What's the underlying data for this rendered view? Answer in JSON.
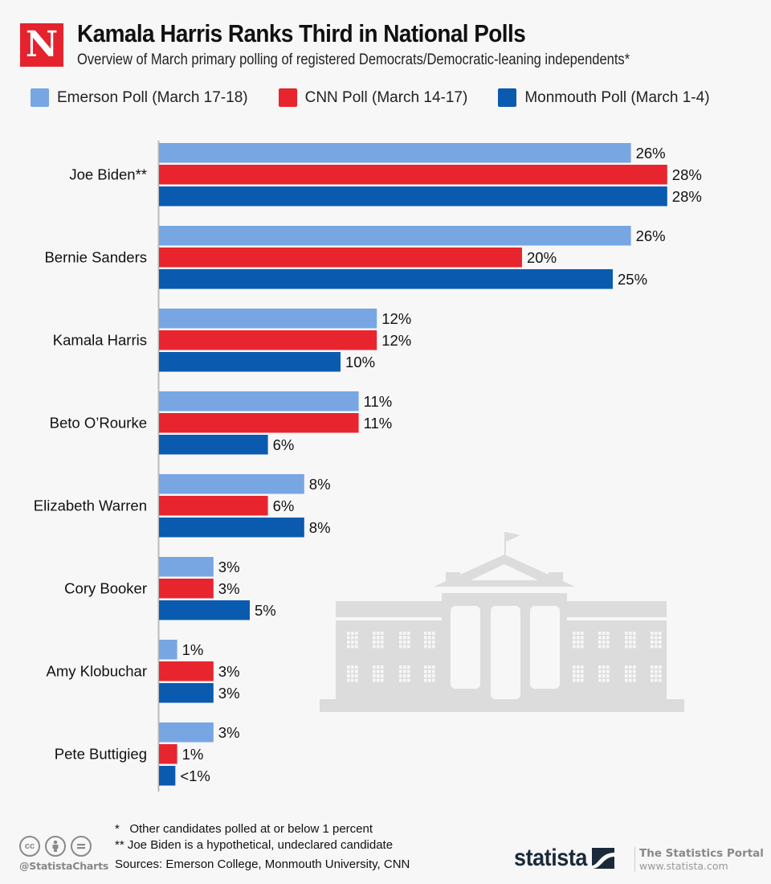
{
  "header": {
    "logo_letter": "N",
    "title": "Kamala Harris Ranks Third in National Polls",
    "subtitle": "Overview of March primary polling of registered Democrats/Democratic-leaning independents*"
  },
  "colors": {
    "emerson": "#77a6e3",
    "cnn": "#e8252f",
    "monmouth": "#0a5bb0",
    "axis": "#bbbbbb",
    "illustration": "#dcdcdc"
  },
  "chart_data": {
    "type": "bar",
    "orientation": "horizontal",
    "title": "Kamala Harris Ranks Third in National Polls",
    "subtitle": "Overview of March primary polling of registered Democrats/Democratic-leaning independents*",
    "xlabel": "",
    "ylabel": "",
    "unit": "%",
    "xlim": [
      0,
      28
    ],
    "grid": false,
    "legend_position": "top",
    "categories": [
      "Joe Biden**",
      "Bernie Sanders",
      "Kamala Harris",
      "Beto O’Rourke",
      "Elizabeth Warren",
      "Cory Booker",
      "Amy Klobuchar",
      "Pete Buttigieg"
    ],
    "series": [
      {
        "name": "Emerson Poll (March 17-18)",
        "key": "emerson",
        "values": [
          26,
          26,
          12,
          11,
          8,
          3,
          1,
          3
        ],
        "labels": [
          "26%",
          "26%",
          "12%",
          "11%",
          "8%",
          "3%",
          "1%",
          "3%"
        ]
      },
      {
        "name": "CNN Poll (March 14-17)",
        "key": "cnn",
        "values": [
          28,
          20,
          12,
          11,
          6,
          3,
          3,
          1
        ],
        "labels": [
          "28%",
          "20%",
          "12%",
          "11%",
          "6%",
          "3%",
          "3%",
          "1%"
        ]
      },
      {
        "name": "Monmouth Poll (March 1-4)",
        "key": "monmouth",
        "values": [
          28,
          25,
          10,
          6,
          8,
          5,
          3,
          0.9
        ],
        "labels": [
          "28%",
          "25%",
          "10%",
          "6%",
          "8%",
          "5%",
          "3%",
          "<1%"
        ]
      }
    ]
  },
  "footer": {
    "notes": [
      "*   Other candidates polled at or below 1 percent",
      "** Joe Biden is a hypothetical, undeclared candidate"
    ],
    "sources": "Sources: Emerson College, Monmouth University, CNN",
    "handle": "@StatistaCharts",
    "cc_icons": [
      "cc",
      "by",
      "nd"
    ],
    "brand": "statista",
    "portal_title": "The Statistics Portal",
    "portal_url": "www.statista.com"
  }
}
